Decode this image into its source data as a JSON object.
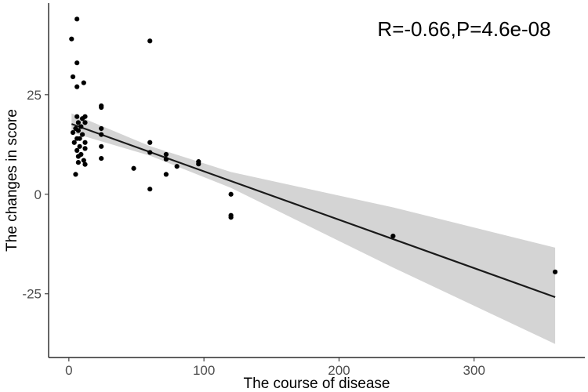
{
  "chart_data": {
    "type": "scatter",
    "title": "",
    "xlabel": "The course of disease",
    "ylabel": "The changes in score",
    "xlim": [
      -15,
      382
    ],
    "ylim": [
      -41,
      48
    ],
    "x_ticks": [
      0,
      100,
      200,
      300
    ],
    "y_ticks": [
      -25,
      0,
      25
    ],
    "grid": false,
    "annotation": "R=-0.66,P=4.6e-08",
    "regression": {
      "x_start": 2,
      "x_end": 360,
      "intercept": 17.9,
      "slope": -0.1215,
      "ci": [
        {
          "x": 2,
          "lower": 15.5,
          "upper": 20.3
        },
        {
          "x": 60,
          "lower": 9.7,
          "upper": 12.1
        },
        {
          "x": 120,
          "lower": 1.6,
          "upper": 5.6
        },
        {
          "x": 240,
          "lower": -18.4,
          "upper": -3.3
        },
        {
          "x": 360,
          "lower": -37.6,
          "upper": -13.4
        }
      ]
    },
    "points": [
      {
        "x": 2,
        "y": 39
      },
      {
        "x": 3,
        "y": 29.5
      },
      {
        "x": 3,
        "y": 15.5
      },
      {
        "x": 4,
        "y": 13
      },
      {
        "x": 5,
        "y": 16.5
      },
      {
        "x": 5,
        "y": 5
      },
      {
        "x": 6,
        "y": 44
      },
      {
        "x": 6,
        "y": 33
      },
      {
        "x": 6,
        "y": 27
      },
      {
        "x": 6,
        "y": 19.5
      },
      {
        "x": 6,
        "y": 14
      },
      {
        "x": 6,
        "y": 11
      },
      {
        "x": 7,
        "y": 18
      },
      {
        "x": 7,
        "y": 16
      },
      {
        "x": 7,
        "y": 9.5
      },
      {
        "x": 7,
        "y": 8
      },
      {
        "x": 8,
        "y": 14
      },
      {
        "x": 8,
        "y": 12
      },
      {
        "x": 9,
        "y": 17
      },
      {
        "x": 9,
        "y": 10
      },
      {
        "x": 10,
        "y": 19
      },
      {
        "x": 10,
        "y": 15
      },
      {
        "x": 11,
        "y": 28
      },
      {
        "x": 11,
        "y": 8.5
      },
      {
        "x": 12,
        "y": 19.5
      },
      {
        "x": 12,
        "y": 18
      },
      {
        "x": 12,
        "y": 13
      },
      {
        "x": 12,
        "y": 11.5
      },
      {
        "x": 12,
        "y": 7.5
      },
      {
        "x": 24,
        "y": 22.2
      },
      {
        "x": 24,
        "y": 21.8
      },
      {
        "x": 24,
        "y": 16.5
      },
      {
        "x": 24,
        "y": 15
      },
      {
        "x": 24,
        "y": 12
      },
      {
        "x": 24,
        "y": 9
      },
      {
        "x": 48,
        "y": 6.5
      },
      {
        "x": 60,
        "y": 38.5
      },
      {
        "x": 60,
        "y": 13
      },
      {
        "x": 60,
        "y": 10.5
      },
      {
        "x": 60,
        "y": 1.3
      },
      {
        "x": 72,
        "y": 10
      },
      {
        "x": 72,
        "y": 8.8
      },
      {
        "x": 72,
        "y": 5
      },
      {
        "x": 80,
        "y": 7
      },
      {
        "x": 96,
        "y": 8.2
      },
      {
        "x": 96,
        "y": 7.6
      },
      {
        "x": 120,
        "y": 0
      },
      {
        "x": 120,
        "y": -5.3
      },
      {
        "x": 120,
        "y": -5.8
      },
      {
        "x": 240,
        "y": -10.5
      },
      {
        "x": 360,
        "y": -19.5
      }
    ]
  }
}
